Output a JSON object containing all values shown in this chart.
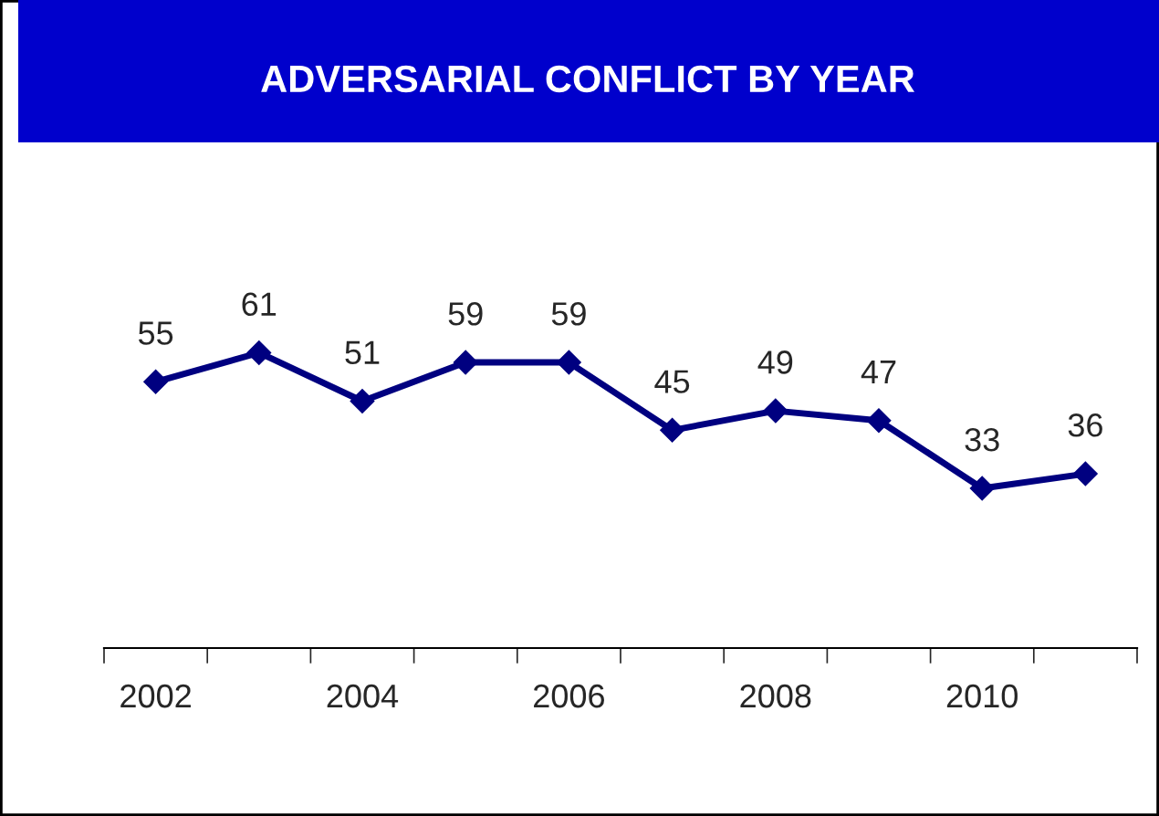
{
  "chart_data": {
    "type": "line",
    "title": "ADVERSARIAL CONFLICT BY YEAR",
    "categories": [
      "2002",
      null,
      "2004",
      null,
      "2006",
      null,
      "2008",
      null,
      "2010",
      null
    ],
    "series": [
      {
        "color": "#000080",
        "values": [
          55,
          61,
          51,
          59,
          59,
          45,
          49,
          47,
          33,
          36
        ]
      }
    ],
    "data_labels": true,
    "marker": "diamond",
    "line_style": "solid",
    "grid": false,
    "legend": false,
    "tick_labels": "x"
  }
}
